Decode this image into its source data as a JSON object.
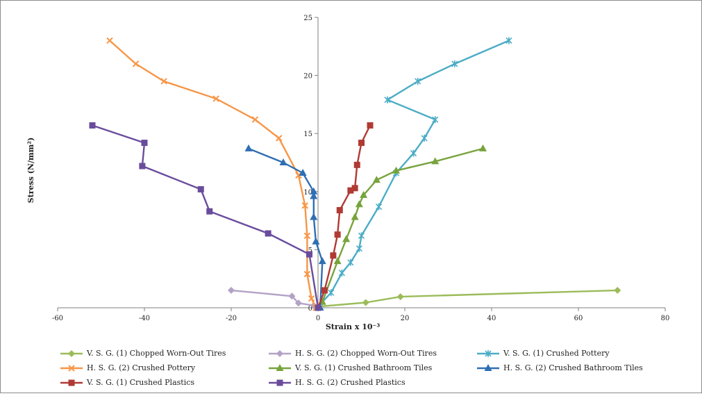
{
  "chart_data": {
    "type": "scatter",
    "title": "",
    "xlabel": "Strain x 10⁻³",
    "ylabel": "Stress (N/mm²)",
    "xlim": [
      -60,
      80
    ],
    "ylim": [
      0,
      25
    ],
    "x_ticks": [
      "-60",
      "-40",
      "-20",
      "0",
      "20",
      "40",
      "60",
      "80"
    ],
    "y_ticks": [
      "0",
      "5",
      "10",
      "15",
      "20",
      "25"
    ],
    "grid": false,
    "legend_position": "bottom",
    "series": [
      {
        "name": "V. S. G. (1) Chopped Worn-Out Tires",
        "color": "#9bbb59",
        "marker": "diamond",
        "x": [
          0,
          0,
          11,
          19,
          69
        ],
        "y": [
          0,
          0.1,
          0.45,
          0.95,
          1.5
        ]
      },
      {
        "name": "H. S. G. (2) Chopped Worn-Out Tires",
        "color": "#b3a2c7",
        "marker": "diamond",
        "x": [
          -20,
          -6,
          -4.5,
          -1,
          0
        ],
        "y": [
          1.5,
          1.0,
          0.4,
          0.2,
          0
        ]
      },
      {
        "name": "V. S. G. (1) Crushed Pottery",
        "color": "#4bacc6",
        "marker": "star",
        "x": [
          0,
          1,
          3,
          5.5,
          7.5,
          9.5,
          10,
          14,
          18,
          22,
          24.5,
          27,
          16,
          23,
          31.5,
          44
        ],
        "y": [
          0,
          0.5,
          1.3,
          3.0,
          3.9,
          5.1,
          6.2,
          8.7,
          11.6,
          13.3,
          14.6,
          16.2,
          17.9,
          19.5,
          21.0,
          23.0
        ]
      },
      {
        "name": "H. S. G. (2) Crushed Pottery",
        "color": "#f79646",
        "marker": "x",
        "x": [
          -0.5,
          -1.5,
          -2.5,
          -2.5,
          -3,
          -4.5,
          -9,
          -14.5,
          -23.5,
          -35.5,
          -42,
          -48
        ],
        "y": [
          0,
          0.8,
          2.9,
          6.2,
          8.8,
          11.4,
          14.6,
          16.2,
          18.0,
          19.5,
          21.0,
          23.0
        ]
      },
      {
        "name": "V. S. G. (1) Crushed Bathroom Tiles",
        "color": "#77a33d",
        "marker": "triangle",
        "x": [
          0,
          1,
          4.5,
          6.5,
          8.5,
          9.5,
          10.5,
          13.5,
          18,
          27,
          38
        ],
        "y": [
          0,
          0.5,
          4.0,
          5.9,
          7.8,
          8.9,
          9.7,
          11.0,
          11.8,
          12.6,
          13.7
        ]
      },
      {
        "name": "H. S. G. (2) Crushed Bathroom Tiles",
        "color": "#2f6fb3",
        "marker": "triangle",
        "x": [
          0.5,
          1,
          -0.5,
          -1,
          -1,
          -1,
          -3.5,
          -8,
          -16
        ],
        "y": [
          0,
          4.0,
          5.7,
          7.8,
          9.6,
          10.0,
          11.6,
          12.5,
          13.7
        ]
      },
      {
        "name": "V. S. G. (1) Crushed Plastics",
        "color": "#b03a34",
        "marker": "square",
        "x": [
          0,
          1.5,
          3.5,
          4.5,
          5,
          7.5,
          8.5,
          9,
          10,
          12
        ],
        "y": [
          0,
          1.5,
          4.5,
          6.3,
          8.4,
          10.1,
          10.3,
          12.3,
          14.2,
          15.7
        ]
      },
      {
        "name": "H. S. G. (2) Crushed Plastics",
        "color": "#6a4c9c",
        "marker": "square",
        "x": [
          0,
          -2,
          -11.5,
          -25,
          -27,
          -40.5,
          -40,
          -52
        ],
        "y": [
          0,
          4.6,
          6.4,
          8.3,
          10.2,
          12.2,
          14.2,
          15.7
        ]
      }
    ]
  }
}
